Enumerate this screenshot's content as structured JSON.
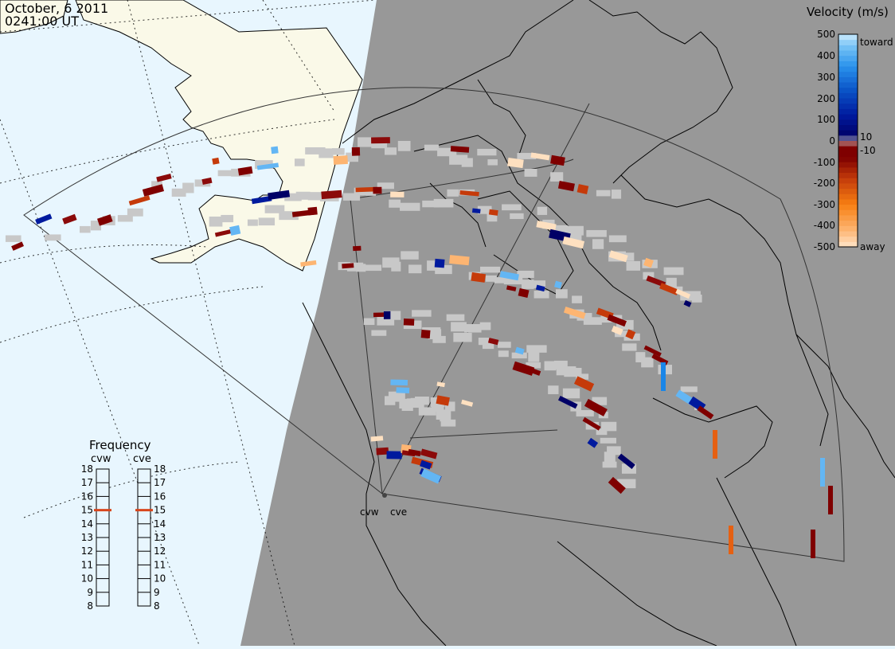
{
  "header": {
    "date": "October, 6 2011",
    "time": "0241:00 UT"
  },
  "colorbar": {
    "title": "Velocity (m/s)",
    "ticks": [
      "500",
      "400",
      "300",
      "200",
      "100",
      "10",
      "0",
      "-10",
      "-100",
      "-200",
      "-300",
      "-400",
      "-500"
    ],
    "toward_label": "toward",
    "away_label": "away",
    "colors": [
      "#fee0c0",
      "#fdb877",
      "#fc8a1e",
      "#e56012",
      "#c53a0a",
      "#a11a04",
      "#7f0000",
      "#000063",
      "#00139a",
      "#0050c8",
      "#1a86e8",
      "#63b6f4",
      "#b7e0fb"
    ]
  },
  "frequency": {
    "title": "Frequency",
    "radars": [
      {
        "name": "cvw",
        "selected_mhz": 15
      },
      {
        "name": "cve",
        "selected_mhz": 15
      }
    ],
    "scale_min": 8,
    "scale_max": 18,
    "labels": [
      "18",
      "17",
      "16",
      "15",
      "14",
      "13",
      "12",
      "11",
      "10",
      "9",
      "8"
    ],
    "marker_color": "#d8461d"
  },
  "map": {
    "night_color": "#989898",
    "day_color": "#e8f6fe",
    "land_day_color": "#faf9e8",
    "ground_scatter_color": "#c8c8c8",
    "radar_site_labels": [
      "cvw",
      "cve"
    ]
  }
}
